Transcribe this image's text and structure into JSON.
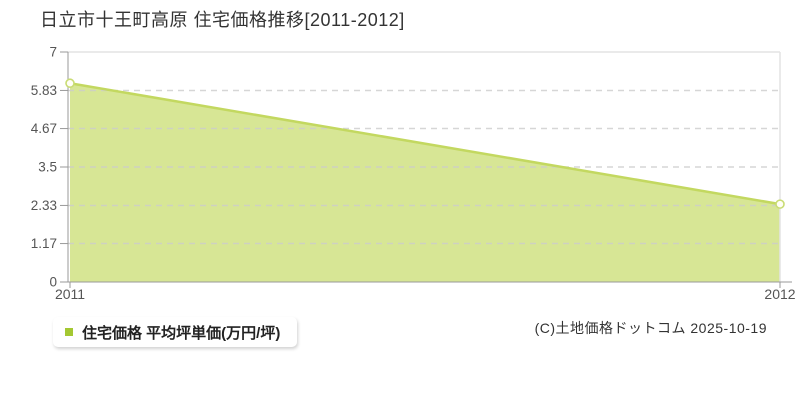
{
  "title": "日立市十王町高原 住宅価格推移[2011-2012]",
  "legend": {
    "label": "住宅価格 平均坪単価(万円/坪)"
  },
  "copyright": "(C)土地価格ドットコム 2025-10-19",
  "chart_data": {
    "type": "area",
    "title": "日立市十王町高原 住宅価格推移[2011-2012]",
    "x": [
      "2011",
      "2012"
    ],
    "series": [
      {
        "name": "住宅価格 平均坪単価(万円/坪)",
        "values": [
          6.05,
          2.37
        ]
      }
    ],
    "xlabel": "",
    "ylabel": "",
    "ylim": [
      0,
      7
    ],
    "y_ticks": [
      {
        "value": 0,
        "label": "0"
      },
      {
        "value": 1.17,
        "label": "1.17"
      },
      {
        "value": 2.33,
        "label": "2.33"
      },
      {
        "value": 3.5,
        "label": "3.5"
      },
      {
        "value": 4.67,
        "label": "4.67"
      },
      {
        "value": 5.83,
        "label": "5.83"
      },
      {
        "value": 7,
        "label": "7"
      }
    ],
    "grid": "horizontal-dashed",
    "legend_position": "bottom-left",
    "colors": {
      "area_fill": "#d7e695",
      "line": "#c3d860",
      "marker_fill": "#fffef6",
      "marker_stroke": "#c9dc74",
      "gridline": "#cccccc",
      "plot_border": "#e3e3e3",
      "axis": "#999999",
      "tick_label": "#555555",
      "legend_marker": "#a4c832"
    }
  }
}
